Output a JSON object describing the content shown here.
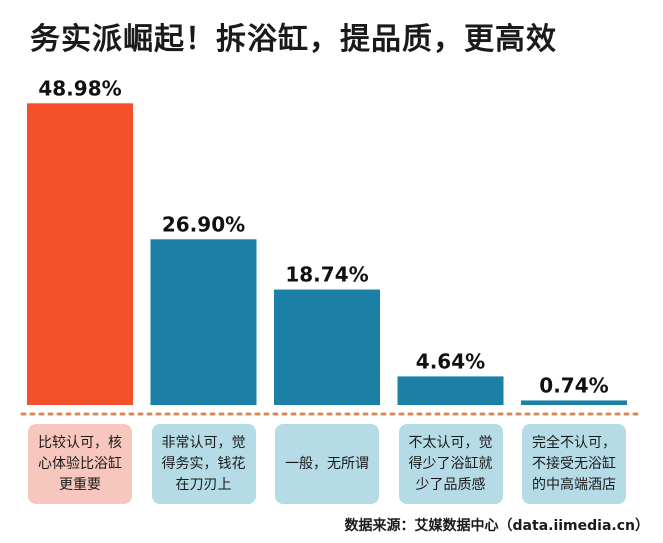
{
  "title": "务实派崛起！拆浴缸，提品质，更高效",
  "source": "数据来源：艾媒数据中心（data.iimedia.cn）",
  "chart_data": {
    "type": "bar",
    "categories": [
      "比较认可，核\n心体验比浴缸\n更重要",
      "非常认可，觉\n得务实，钱花\n在刀刃上",
      "一般，无所谓",
      "不太认可，觉\n得少了浴缸就\n少了品质感",
      "完全不认可，\n不接受无浴缸\n的中高端酒店"
    ],
    "values": [
      48.98,
      26.9,
      18.74,
      4.64,
      0.74
    ],
    "value_labels": [
      "48.98%",
      "26.90%",
      "18.74%",
      "4.64%",
      "0.74%"
    ],
    "ylim": [
      0,
      50
    ],
    "colors": {
      "highlight_bar": "#f4502a",
      "bar": "#1b7fa6",
      "highlight_box": "#f7c7bd",
      "box": "#b5dbe7",
      "baseline": "#d98a5a"
    },
    "highlight_index": 0
  }
}
